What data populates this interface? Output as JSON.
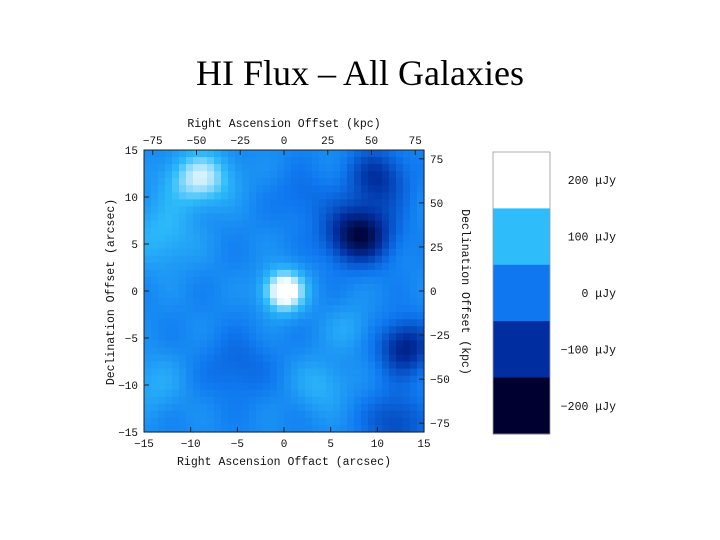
{
  "title": "HI Flux – All Galaxies",
  "chart_data": {
    "type": "heatmap",
    "xlabel_bottom": "Right Ascension Offact (arcsec)",
    "xlabel_top": "Right Ascension Offset (kpc)",
    "ylabel_left": "Declination Offset (arcsec)",
    "ylabel_right": "Declination Offset (kpc)",
    "xlim": [
      -15,
      15
    ],
    "ylim": [
      -15,
      15
    ],
    "kpc_lim": [
      -80,
      80
    ],
    "x_ticks": [
      -15,
      -10,
      -5,
      0,
      5,
      10,
      15
    ],
    "y_ticks": [
      -15,
      -10,
      -5,
      0,
      5,
      10,
      15
    ],
    "kpc_ticks": [
      -75,
      -50,
      -25,
      0,
      25,
      50,
      75
    ],
    "x_tick_labels": [
      "−15",
      "−10",
      "−5",
      "0",
      "5",
      "10",
      "15"
    ],
    "y_tick_labels": [
      "−15",
      "−10",
      "−5",
      "0",
      "5",
      "10",
      "15"
    ],
    "kpc_tick_labels": [
      "−75",
      "−50",
      "−25",
      "0",
      "25",
      "50",
      "75"
    ],
    "colorbar": {
      "levels": [
        200,
        100,
        0,
        -100,
        -200
      ],
      "labels": [
        "200 μJy",
        "100 μJy",
        "0 μJy",
        "−100 μJy",
        "−200 μJy"
      ],
      "colors": [
        "#ffffff",
        "#2ebcfa",
        "#0f78f0",
        "#002ea0",
        "#000030"
      ]
    },
    "features": [
      {
        "type": "peak",
        "x": 0,
        "y": 0,
        "flux": 220
      },
      {
        "type": "peak",
        "x": -9,
        "y": 12,
        "flux": 160
      },
      {
        "type": "trough",
        "x": 8,
        "y": 6,
        "flux": -200
      },
      {
        "type": "trough",
        "x": 13,
        "y": -6,
        "flux": -150
      }
    ]
  }
}
